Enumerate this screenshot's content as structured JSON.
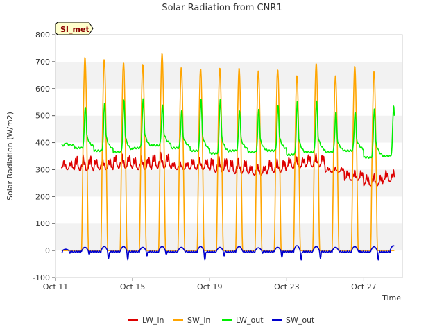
{
  "chart_data": {
    "type": "line",
    "title": "Solar Radiation from CNR1",
    "xlabel": "Time",
    "ylabel": "Solar Radiation (W/m2)",
    "site_label": "SI_met",
    "ylim": [
      -100,
      800
    ],
    "yticks": [
      -100,
      0,
      100,
      200,
      300,
      400,
      500,
      600,
      700,
      800
    ],
    "xlim": [
      "2023-10-11",
      "2023-10-29"
    ],
    "xticks": [
      {
        "date": "2023-10-11",
        "label": "Oct 11"
      },
      {
        "date": "2023-10-15",
        "label": "Oct 15"
      },
      {
        "date": "2023-10-19",
        "label": "Oct 19"
      },
      {
        "date": "2023-10-23",
        "label": "Oct 23"
      },
      {
        "date": "2023-10-27",
        "label": "Oct 27"
      }
    ],
    "grid": "horizontal bands",
    "legend_position": "bottom",
    "days": [
      "2023-10-11",
      "2023-10-12",
      "2023-10-13",
      "2023-10-14",
      "2023-10-15",
      "2023-10-16",
      "2023-10-17",
      "2023-10-18",
      "2023-10-19",
      "2023-10-20",
      "2023-10-21",
      "2023-10-22",
      "2023-10-23",
      "2023-10-24",
      "2023-10-25",
      "2023-10-26",
      "2023-10-27",
      "2023-10-28"
    ],
    "series": [
      {
        "name": "LW_in",
        "color": "#dd0000",
        "daily_min": [
          300,
          295,
          300,
          305,
          300,
          305,
          300,
          300,
          290,
          285,
          280,
          290,
          305,
          310,
          290,
          260,
          240,
          255
        ],
        "daily_max": [
          335,
          355,
          345,
          360,
          350,
          365,
          330,
          345,
          350,
          345,
          320,
          340,
          350,
          360,
          310,
          300,
          285,
          300
        ]
      },
      {
        "name": "SW_in",
        "color": "#ffa500",
        "daily_max": [
          0,
          718,
          710,
          698,
          692,
          732,
          680,
          675,
          678,
          678,
          668,
          672,
          650,
          695,
          650,
          685,
          665,
          0
        ]
      },
      {
        "name": "LW_out",
        "color": "#00ee00",
        "daily_min": [
          390,
          380,
          370,
          365,
          380,
          390,
          380,
          370,
          360,
          370,
          365,
          370,
          355,
          365,
          365,
          370,
          345,
          350
        ],
        "daily_max": [
          400,
          535,
          548,
          558,
          562,
          540,
          520,
          565,
          565,
          522,
          525,
          538,
          552,
          555,
          515,
          515,
          530,
          540
        ]
      },
      {
        "name": "SW_out",
        "color": "#0000cc",
        "daily_min": [
          -10,
          -15,
          -30,
          -35,
          -20,
          -15,
          -5,
          -35,
          -20,
          -5,
          -10,
          -25,
          -35,
          -30,
          -5,
          -5,
          -35,
          -35
        ],
        "daily_max": [
          5,
          12,
          15,
          15,
          12,
          15,
          12,
          15,
          12,
          15,
          10,
          12,
          18,
          15,
          12,
          15,
          14,
          18
        ]
      }
    ]
  }
}
